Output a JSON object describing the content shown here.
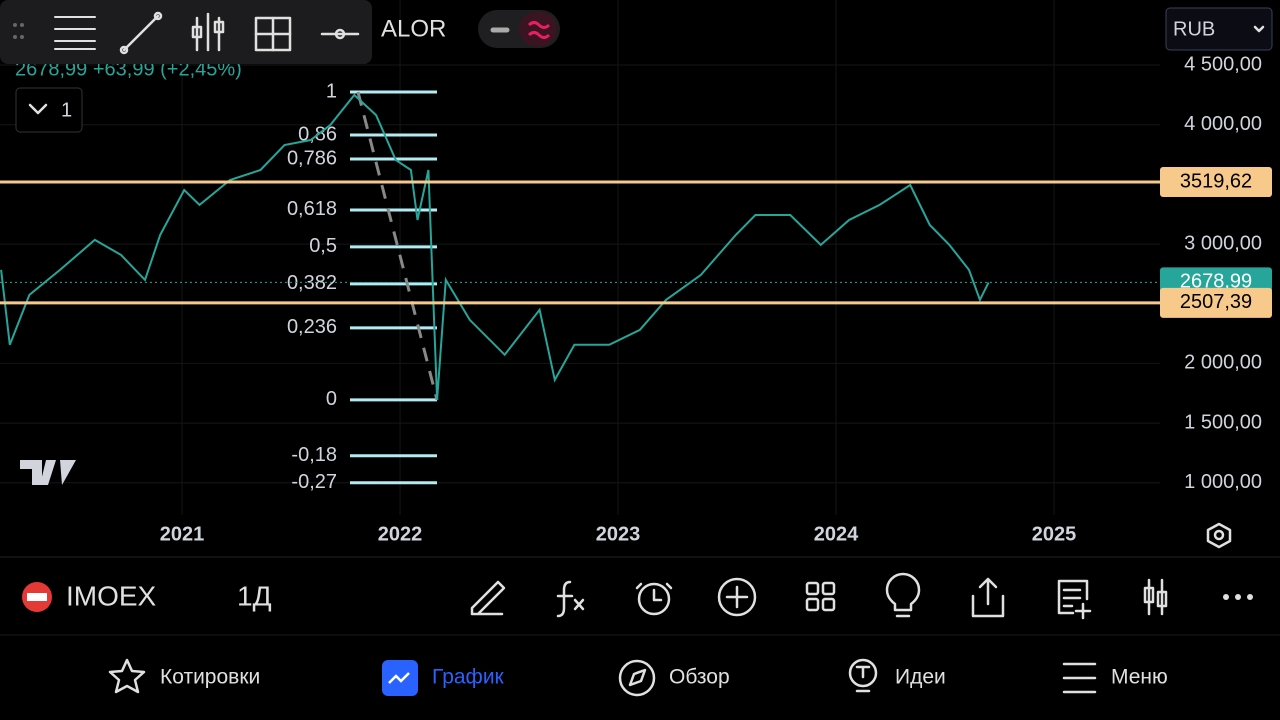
{
  "toolbar": {
    "symbol": "ALOR",
    "currency": "RUB"
  },
  "legend": {
    "price_text": "2678,99 +63,99 (+2,45%)",
    "interval_count": "1"
  },
  "chart_data": {
    "type": "line",
    "color": "#26a69a",
    "x": [
      2020.17,
      2020.21,
      2020.3,
      2020.44,
      2020.6,
      2020.72,
      2020.83,
      2020.9,
      2021.01,
      2021.08,
      2021.22,
      2021.36,
      2021.47,
      2021.59,
      2021.68,
      2021.79,
      2021.89,
      2021.98,
      2022.05,
      2022.08,
      2022.13,
      2022.17,
      2022.21,
      2022.32,
      2022.48,
      2022.64,
      2022.71,
      2022.8,
      2022.96,
      2023.1,
      2023.22,
      2023.38,
      2023.54,
      2023.63,
      2023.79,
      2023.93,
      2024.06,
      2024.2,
      2024.34,
      2024.43,
      2024.52,
      2024.61,
      2024.66,
      2024.7
    ],
    "values": [
      2784,
      2156,
      2574,
      2784,
      3035,
      2909,
      2700,
      3077,
      3453,
      3328,
      3537,
      3621,
      3830,
      3872,
      3998,
      4249,
      4081,
      3705,
      3621,
      3202,
      3621,
      1695,
      2700,
      2365,
      2072,
      2449,
      1862,
      2156,
      2156,
      2281,
      2532,
      2742,
      3077,
      3244,
      3244,
      2993,
      3202,
      3328,
      3495,
      3160,
      2993,
      2784,
      2532,
      2679
    ],
    "xlim": [
      2020.165,
      2025.486
    ],
    "ylim": [
      730,
      5045
    ],
    "xticks": [
      2021,
      2022,
      2023,
      2024,
      2025
    ],
    "yticks": [
      {
        "value": 1000,
        "label": "1 000,00"
      },
      {
        "value": 1500,
        "label": "1 500,00"
      },
      {
        "value": 2000,
        "label": "2 000,00"
      },
      {
        "value": 3000,
        "label": "3 000,00"
      },
      {
        "value": 4000,
        "label": "4 000,00"
      },
      {
        "value": 4500,
        "label": "4 500,00"
      }
    ],
    "grid": true,
    "horizontal_lines": [
      {
        "value": 3519.62,
        "label": "3519,62",
        "color": "#f7c98b"
      },
      {
        "value": 2507.39,
        "label": "2507,39",
        "color": "#f7c98b"
      }
    ],
    "current_price": {
      "value": 2678.99,
      "label": "2678,99",
      "color": "#26a69a"
    },
    "fib_color": "#b2ebf2",
    "fib_levels": [
      {
        "value": 4274,
        "label": "1"
      },
      {
        "value": 3914,
        "label": "0,86"
      },
      {
        "value": 3713,
        "label": "0,786"
      },
      {
        "value": 3286,
        "label": "0,618"
      },
      {
        "value": 2976,
        "label": "0,5"
      },
      {
        "value": 2666,
        "label": "0,382"
      },
      {
        "value": 2298,
        "label": "0,236"
      },
      {
        "value": 1695,
        "label": "0"
      },
      {
        "value": 1226,
        "label": "-0,18"
      },
      {
        "value": 1000,
        "label": "-0,27"
      }
    ]
  },
  "bottom_bar": {
    "symbol": "IMOEX",
    "interval": "1Д"
  },
  "nav": {
    "items": [
      "Котировки",
      "График",
      "Обзор",
      "Идеи",
      "Меню"
    ],
    "active": 1
  }
}
